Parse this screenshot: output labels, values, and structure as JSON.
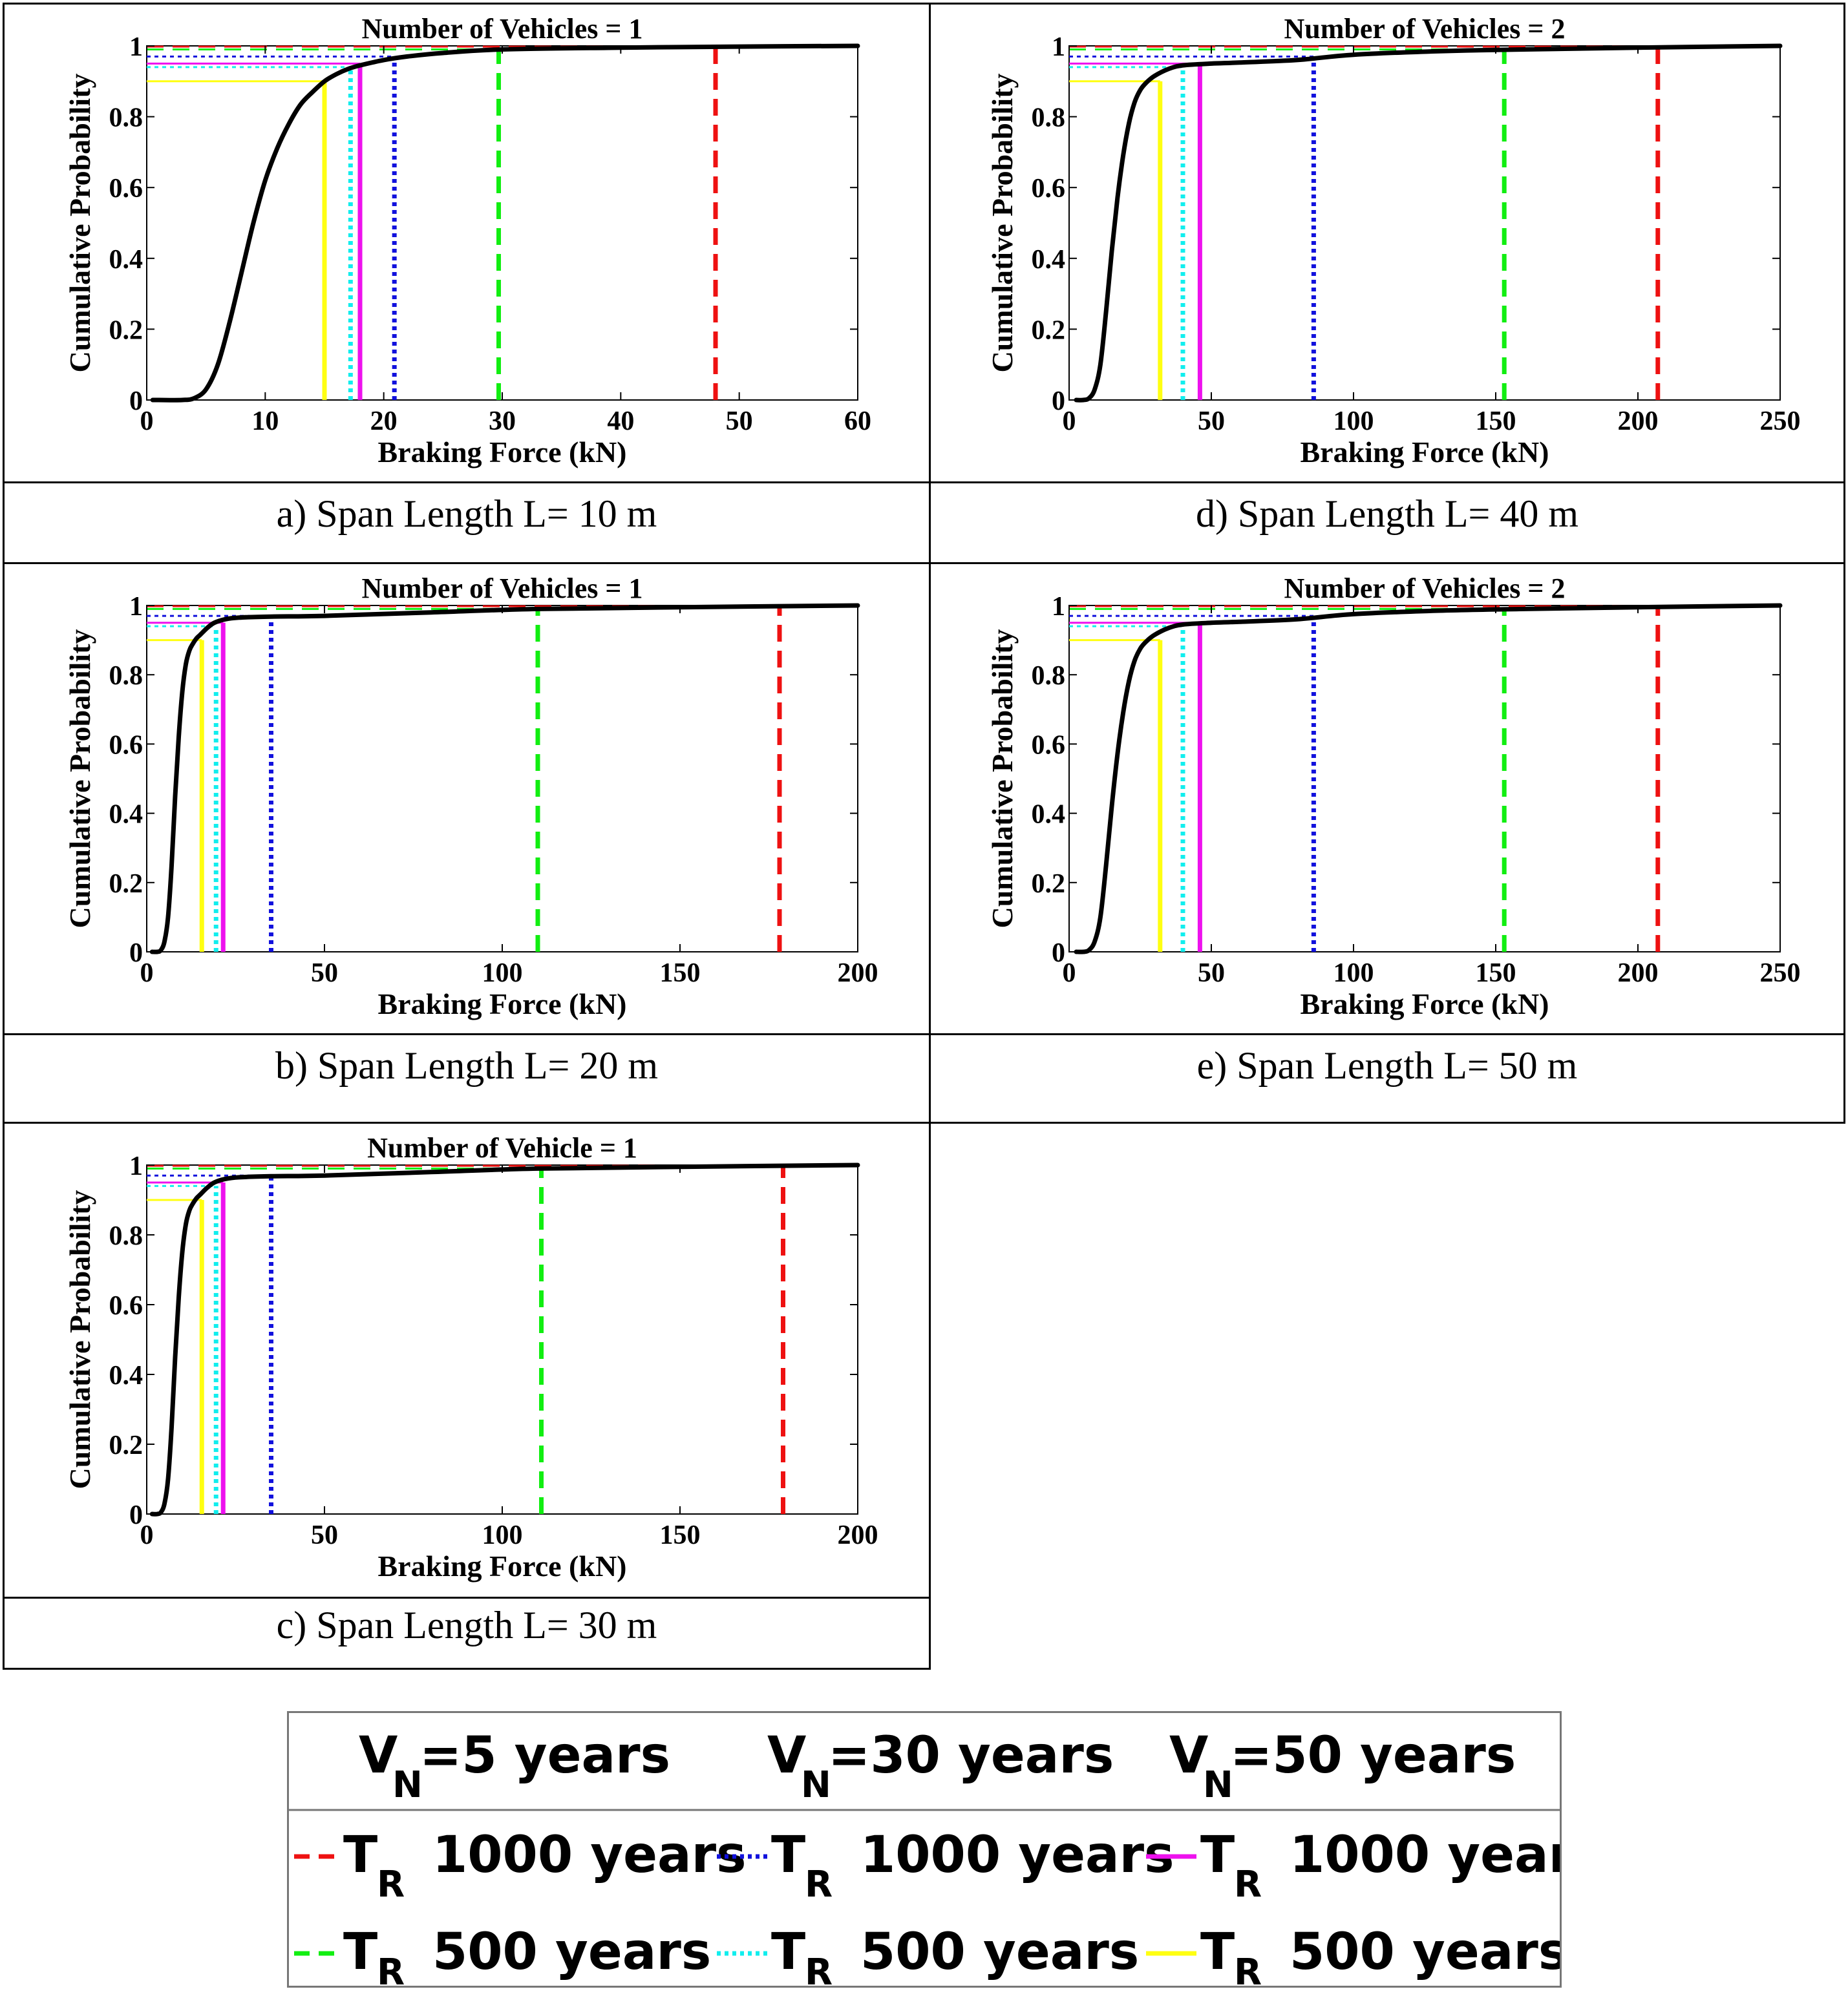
{
  "captions": {
    "a": "a)   Span Length L= 10 m",
    "b": "b) Span Length L= 20 m",
    "c": "c) Span Length L= 30 m",
    "d": "d) Span Length L= 40 m",
    "e": "e) Span Length L= 50 m"
  },
  "legend": {
    "headers": [
      "V",
      "N",
      "=5 years",
      "=30 years",
      "=50 years"
    ],
    "entry_T": "T",
    "entry_R": "R",
    "entry_1000": "1000 years",
    "entry_500": "500 years"
  },
  "colors": {
    "cdf": "#000000",
    "vn5_tr1000": "#ee1111",
    "vn5_tr500": "#11ee11",
    "vn30_tr1000": "#1111dd",
    "vn30_tr500": "#11eeee",
    "vn50_tr1000": "#ee11ee",
    "vn50_tr500": "#ffff11"
  },
  "chart_data": [
    {
      "id": "a",
      "type": "line",
      "title": "Number of Vehicles = 1",
      "xlabel": "Braking Force (kN)",
      "ylabel": "Cumulative Probability",
      "xlim": [
        0,
        60
      ],
      "ylim": [
        0,
        1
      ],
      "xticks": [
        0,
        10,
        20,
        30,
        40,
        50,
        60
      ],
      "yticks": [
        0,
        0.2,
        0.4,
        0.6,
        0.8,
        1
      ],
      "ytick_labels": [
        "0",
        "0.2",
        "0.4",
        "0.6",
        "0.8",
        "1"
      ],
      "series": [
        {
          "key": "cdf",
          "x": [
            1,
            3,
            4,
            5,
            6,
            7,
            8,
            9,
            10,
            11,
            12,
            13,
            14,
            15,
            16,
            17,
            18,
            20,
            22,
            25,
            30,
            40,
            50,
            60
          ],
          "y": [
            0,
            0,
            0.005,
            0.03,
            0.1,
            0.22,
            0.36,
            0.5,
            0.62,
            0.71,
            0.78,
            0.835,
            0.87,
            0.9,
            0.92,
            0.935,
            0.945,
            0.96,
            0.97,
            0.98,
            0.99,
            0.995,
            0.998,
            1.0
          ]
        },
        {
          "key": "vn5_tr1000",
          "style": "dashed",
          "x": 48,
          "p": 0.998
        },
        {
          "key": "vn5_tr500",
          "style": "dashed",
          "x": 29.7,
          "p": 0.99
        },
        {
          "key": "vn30_tr1000",
          "style": "dotted",
          "x": 20.9,
          "p": 0.97
        },
        {
          "key": "vn30_tr500",
          "style": "dotted",
          "x": 17.2,
          "p": 0.94
        },
        {
          "key": "vn50_tr1000",
          "style": "solid",
          "x": 18,
          "p": 0.95
        },
        {
          "key": "vn50_tr500",
          "style": "solid",
          "x": 15,
          "p": 0.9
        }
      ]
    },
    {
      "id": "b",
      "type": "line",
      "title": "Number of Vehicles = 1",
      "xlabel": "Braking Force (kN)",
      "ylabel": "Cumulative Probability",
      "xlim": [
        0,
        200
      ],
      "ylim": [
        0,
        1
      ],
      "xticks": [
        0,
        50,
        100,
        150,
        200
      ],
      "yticks": [
        0,
        0.2,
        0.4,
        0.6,
        0.8,
        1
      ],
      "ytick_labels": [
        "0",
        "0.2",
        "0.4",
        "0.6",
        "0.8",
        "1"
      ],
      "series": [
        {
          "key": "cdf",
          "x": [
            3,
            4,
            5,
            6,
            7,
            8,
            9,
            10,
            11,
            12,
            13,
            14,
            15,
            17,
            19,
            22,
            26,
            35,
            50,
            80,
            110,
            150,
            200
          ],
          "y": [
            0,
            0.005,
            0.03,
            0.1,
            0.25,
            0.45,
            0.62,
            0.75,
            0.83,
            0.87,
            0.89,
            0.905,
            0.915,
            0.935,
            0.95,
            0.96,
            0.965,
            0.968,
            0.97,
            0.98,
            0.99,
            0.995,
            1.0
          ]
        },
        {
          "key": "vn5_tr1000",
          "style": "dashed",
          "x": 178,
          "p": 0.998
        },
        {
          "key": "vn5_tr500",
          "style": "dashed",
          "x": 110,
          "p": 0.99
        },
        {
          "key": "vn30_tr1000",
          "style": "dotted",
          "x": 35,
          "p": 0.97
        },
        {
          "key": "vn30_tr500",
          "style": "dotted",
          "x": 19.5,
          "p": 0.94
        },
        {
          "key": "vn50_tr1000",
          "style": "solid",
          "x": 21.5,
          "p": 0.95
        },
        {
          "key": "vn50_tr500",
          "style": "solid",
          "x": 15.5,
          "p": 0.9
        }
      ]
    },
    {
      "id": "c",
      "type": "line",
      "title": "Number of Vehicle = 1",
      "xlabel": "Braking Force (kN)",
      "ylabel": "Cumulative Probability",
      "xlim": [
        0,
        200
      ],
      "ylim": [
        0,
        1
      ],
      "xticks": [
        0,
        50,
        100,
        150,
        200
      ],
      "yticks": [
        0,
        0.2,
        0.4,
        0.6,
        0.8,
        1
      ],
      "ytick_labels": [
        "0",
        "0.2",
        "0.4",
        "0.6",
        "0.8",
        "1"
      ],
      "series": [
        {
          "key": "cdf",
          "x": [
            3,
            4,
            5,
            6,
            7,
            8,
            9,
            10,
            11,
            12,
            13,
            14,
            15,
            17,
            19,
            22,
            26,
            35,
            50,
            80,
            110,
            150,
            200
          ],
          "y": [
            0,
            0.005,
            0.03,
            0.1,
            0.25,
            0.45,
            0.62,
            0.75,
            0.83,
            0.87,
            0.89,
            0.905,
            0.915,
            0.935,
            0.95,
            0.96,
            0.965,
            0.968,
            0.97,
            0.98,
            0.99,
            0.995,
            1.0
          ]
        },
        {
          "key": "vn5_tr1000",
          "style": "dashed",
          "x": 179,
          "p": 0.998
        },
        {
          "key": "vn5_tr500",
          "style": "dashed",
          "x": 111,
          "p": 0.99
        },
        {
          "key": "vn30_tr1000",
          "style": "dotted",
          "x": 35,
          "p": 0.97
        },
        {
          "key": "vn30_tr500",
          "style": "dotted",
          "x": 19.5,
          "p": 0.94
        },
        {
          "key": "vn50_tr1000",
          "style": "solid",
          "x": 21.5,
          "p": 0.95
        },
        {
          "key": "vn50_tr500",
          "style": "solid",
          "x": 15.5,
          "p": 0.9
        }
      ]
    },
    {
      "id": "d",
      "type": "line",
      "title": "Number of Vehicles = 2",
      "xlabel": "Braking Force (kN)",
      "ylabel": "Cumulative Probability",
      "xlim": [
        0,
        250
      ],
      "ylim": [
        0,
        1
      ],
      "xticks": [
        0,
        50,
        100,
        150,
        200,
        250
      ],
      "yticks": [
        0,
        0.2,
        0.4,
        0.6,
        0.8,
        1
      ],
      "ytick_labels": [
        "0",
        "0.2",
        "0.4",
        "0.6",
        "0.8",
        "1"
      ],
      "series": [
        {
          "key": "cdf",
          "x": [
            5,
            7,
            9,
            11,
            13,
            15,
            17,
            19,
            21,
            23,
            25,
            27,
            30,
            35,
            40,
            50,
            60,
            80,
            100,
            130,
            160,
            200,
            250
          ],
          "y": [
            0,
            0.005,
            0.03,
            0.1,
            0.25,
            0.42,
            0.57,
            0.69,
            0.78,
            0.84,
            0.875,
            0.895,
            0.915,
            0.935,
            0.945,
            0.95,
            0.953,
            0.96,
            0.975,
            0.985,
            0.99,
            0.995,
            1.0
          ]
        },
        {
          "key": "vn5_tr1000",
          "style": "dashed",
          "x": 207,
          "p": 0.998
        },
        {
          "key": "vn5_tr500",
          "style": "dashed",
          "x": 153,
          "p": 0.99
        },
        {
          "key": "vn30_tr1000",
          "style": "dotted",
          "x": 86,
          "p": 0.97
        },
        {
          "key": "vn30_tr500",
          "style": "dotted",
          "x": 40,
          "p": 0.94
        },
        {
          "key": "vn50_tr1000",
          "style": "solid",
          "x": 46,
          "p": 0.95
        },
        {
          "key": "vn50_tr500",
          "style": "solid",
          "x": 32,
          "p": 0.9
        }
      ]
    },
    {
      "id": "e",
      "type": "line",
      "title": "Number of Vehicles = 2",
      "xlabel": "Braking Force (kN)",
      "ylabel": "Cumulative Probability",
      "xlim": [
        0,
        250
      ],
      "ylim": [
        0,
        1
      ],
      "xticks": [
        0,
        50,
        100,
        150,
        200,
        250
      ],
      "yticks": [
        0,
        0.2,
        0.4,
        0.6,
        0.8,
        1
      ],
      "ytick_labels": [
        "0",
        "0.2",
        "0.4",
        "0.6",
        "0.8",
        "1"
      ],
      "series": [
        {
          "key": "cdf",
          "x": [
            5,
            7,
            9,
            11,
            13,
            15,
            17,
            19,
            21,
            23,
            25,
            27,
            30,
            35,
            40,
            50,
            60,
            80,
            100,
            130,
            160,
            200,
            250
          ],
          "y": [
            0,
            0.005,
            0.03,
            0.1,
            0.25,
            0.42,
            0.57,
            0.69,
            0.78,
            0.84,
            0.875,
            0.895,
            0.915,
            0.935,
            0.945,
            0.95,
            0.953,
            0.96,
            0.975,
            0.985,
            0.99,
            0.995,
            1.0
          ]
        },
        {
          "key": "vn5_tr1000",
          "style": "dashed",
          "x": 207,
          "p": 0.998
        },
        {
          "key": "vn5_tr500",
          "style": "dashed",
          "x": 153,
          "p": 0.99
        },
        {
          "key": "vn30_tr1000",
          "style": "dotted",
          "x": 86,
          "p": 0.97
        },
        {
          "key": "vn30_tr500",
          "style": "dotted",
          "x": 40,
          "p": 0.94
        },
        {
          "key": "vn50_tr1000",
          "style": "solid",
          "x": 46,
          "p": 0.95
        },
        {
          "key": "vn50_tr500",
          "style": "solid",
          "x": 32,
          "p": 0.9
        }
      ]
    }
  ]
}
